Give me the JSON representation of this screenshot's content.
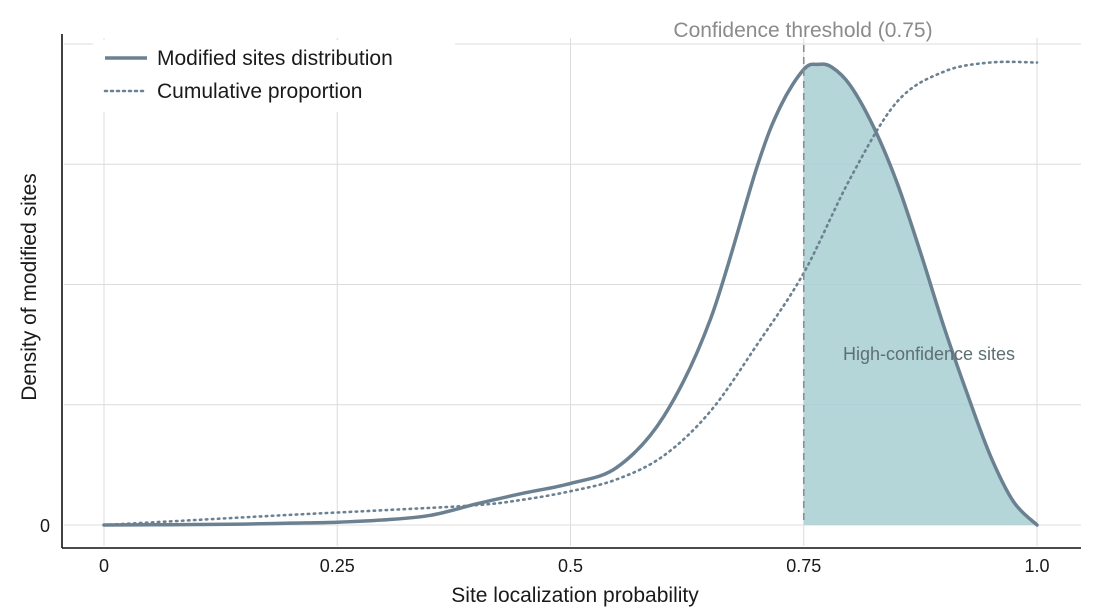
{
  "chart_data": {
    "type": "line",
    "title": "",
    "xlabel": "Site localization probability",
    "ylabel": "Density of modified sites",
    "xlim": [
      -0.1,
      1.05
    ],
    "ylim": [
      0,
      1.04
    ],
    "x_ticks": [
      {
        "value": 0,
        "label": "0"
      },
      {
        "value": 0.25,
        "label": "0.25"
      },
      {
        "value": 0.5,
        "label": "0.5"
      },
      {
        "value": 0.75,
        "label": "0.75"
      },
      {
        "value": 1.0,
        "label": "1.0"
      }
    ],
    "y_ticks": [
      {
        "value": 0,
        "label": "0"
      },
      {
        "value": 0.26,
        "label": ""
      },
      {
        "value": 0.52,
        "label": ""
      },
      {
        "value": 0.78,
        "label": ""
      },
      {
        "value": 1.04,
        "label": ""
      }
    ],
    "grid": true,
    "legend_position": "top-left",
    "series": [
      {
        "name": "Modified sites distribution",
        "style": "solid",
        "color": "#6b8191",
        "x": [
          0,
          0.05,
          0.1,
          0.15,
          0.2,
          0.25,
          0.3,
          0.35,
          0.4,
          0.45,
          0.5,
          0.55,
          0.6,
          0.65,
          0.7,
          0.725,
          0.75,
          0.765,
          0.78,
          0.8,
          0.825,
          0.85,
          0.875,
          0.9,
          0.925,
          0.95,
          0.975,
          1.0
        ],
        "y": [
          0,
          0.0005,
          0.001,
          0.002,
          0.004,
          0.006,
          0.011,
          0.021,
          0.046,
          0.069,
          0.09,
          0.125,
          0.235,
          0.445,
          0.775,
          0.905,
          0.985,
          0.996,
          0.99,
          0.95,
          0.86,
          0.74,
          0.59,
          0.43,
          0.285,
          0.15,
          0.05,
          0
        ]
      },
      {
        "name": "Cumulative proportion",
        "style": "dotted",
        "color": "#6b8191",
        "x": [
          0,
          0.1,
          0.2,
          0.3,
          0.4,
          0.45,
          0.5,
          0.55,
          0.6,
          0.65,
          0.7,
          0.75,
          0.8,
          0.85,
          0.9,
          0.95,
          1.0
        ],
        "y": [
          0,
          0.011,
          0.022,
          0.032,
          0.043,
          0.055,
          0.073,
          0.099,
          0.15,
          0.246,
          0.39,
          0.545,
          0.75,
          0.915,
          0.98,
          1.0,
          1.0
        ]
      }
    ],
    "threshold": {
      "x": 0.75,
      "label": "Confidence threshold (0.75)"
    },
    "shaded_region": {
      "from_x": 0.75,
      "to_x": 1.0,
      "label": "High-confidence sites",
      "color": "#a7cfd2"
    }
  }
}
